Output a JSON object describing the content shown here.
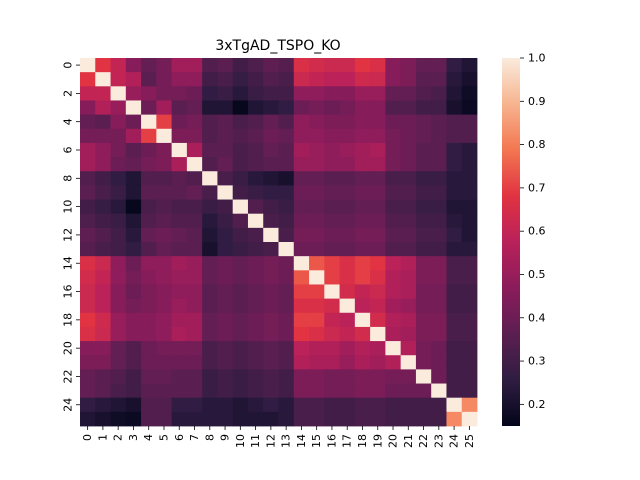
{
  "chart_data": {
    "type": "heatmap",
    "title": "3xTgAD_TSPO_KO",
    "x_tick_labels": [
      "0",
      "1",
      "2",
      "3",
      "4",
      "5",
      "6",
      "7",
      "8",
      "9",
      "10",
      "11",
      "12",
      "13",
      "14",
      "15",
      "16",
      "17",
      "18",
      "19",
      "20",
      "21",
      "22",
      "23",
      "24",
      "25"
    ],
    "y_tick_labels": [
      "0",
      "2",
      "4",
      "6",
      "8",
      "10",
      "12",
      "14",
      "16",
      "18",
      "20",
      "22",
      "24"
    ],
    "colorbar": {
      "ticks": [
        "0.2",
        "0.3",
        "0.4",
        "0.5",
        "0.6",
        "0.7",
        "0.8",
        "0.9",
        "1.0"
      ],
      "range": [
        0.15,
        1.0
      ],
      "colormap": "rocket",
      "colormap_stops": [
        "#03051a",
        "#2f1d42",
        "#5b1e51",
        "#8a1c5b",
        "#b9215a",
        "#e13342",
        "#f37651",
        "#f6b48f",
        "#faebdd"
      ]
    },
    "n_rows": 26,
    "n_cols": 26,
    "matrix": [
      [
        1.0,
        0.68,
        0.6,
        0.46,
        0.38,
        0.42,
        0.52,
        0.52,
        0.34,
        0.36,
        0.3,
        0.33,
        0.37,
        0.35,
        0.66,
        0.64,
        0.62,
        0.62,
        0.68,
        0.66,
        0.46,
        0.44,
        0.38,
        0.38,
        0.26,
        0.22
      ],
      [
        0.68,
        1.0,
        0.6,
        0.56,
        0.36,
        0.42,
        0.48,
        0.48,
        0.3,
        0.32,
        0.27,
        0.3,
        0.34,
        0.32,
        0.62,
        0.6,
        0.58,
        0.58,
        0.63,
        0.62,
        0.46,
        0.44,
        0.36,
        0.36,
        0.24,
        0.2
      ],
      [
        0.6,
        0.6,
        1.0,
        0.5,
        0.46,
        0.42,
        0.42,
        0.4,
        0.26,
        0.28,
        0.24,
        0.28,
        0.3,
        0.3,
        0.48,
        0.48,
        0.46,
        0.46,
        0.5,
        0.5,
        0.38,
        0.38,
        0.34,
        0.32,
        0.22,
        0.18
      ],
      [
        0.46,
        0.56,
        0.5,
        1.0,
        0.4,
        0.52,
        0.36,
        0.38,
        0.22,
        0.22,
        0.16,
        0.22,
        0.24,
        0.26,
        0.4,
        0.42,
        0.4,
        0.42,
        0.46,
        0.46,
        0.34,
        0.34,
        0.3,
        0.3,
        0.2,
        0.17
      ],
      [
        0.38,
        0.36,
        0.46,
        0.4,
        1.0,
        0.7,
        0.4,
        0.42,
        0.34,
        0.36,
        0.32,
        0.34,
        0.38,
        0.34,
        0.48,
        0.46,
        0.44,
        0.44,
        0.46,
        0.46,
        0.4,
        0.4,
        0.38,
        0.36,
        0.34,
        0.34
      ],
      [
        0.42,
        0.42,
        0.42,
        0.52,
        0.7,
        1.0,
        0.44,
        0.44,
        0.34,
        0.36,
        0.34,
        0.36,
        0.4,
        0.38,
        0.48,
        0.48,
        0.46,
        0.46,
        0.48,
        0.48,
        0.42,
        0.4,
        0.38,
        0.36,
        0.34,
        0.34
      ],
      [
        0.52,
        0.48,
        0.42,
        0.36,
        0.4,
        0.44,
        1.0,
        0.54,
        0.36,
        0.36,
        0.32,
        0.34,
        0.38,
        0.36,
        0.52,
        0.5,
        0.48,
        0.5,
        0.52,
        0.54,
        0.42,
        0.4,
        0.36,
        0.36,
        0.26,
        0.24
      ],
      [
        0.52,
        0.48,
        0.4,
        0.38,
        0.42,
        0.44,
        0.54,
        1.0,
        0.34,
        0.38,
        0.32,
        0.34,
        0.36,
        0.36,
        0.5,
        0.5,
        0.48,
        0.48,
        0.52,
        0.52,
        0.42,
        0.4,
        0.36,
        0.36,
        0.26,
        0.24
      ],
      [
        0.34,
        0.3,
        0.26,
        0.22,
        0.34,
        0.34,
        0.36,
        0.34,
        1.0,
        0.32,
        0.28,
        0.24,
        0.22,
        0.2,
        0.38,
        0.38,
        0.36,
        0.36,
        0.38,
        0.38,
        0.32,
        0.32,
        0.28,
        0.28,
        0.24,
        0.24
      ],
      [
        0.36,
        0.32,
        0.28,
        0.22,
        0.36,
        0.36,
        0.36,
        0.38,
        0.32,
        1.0,
        0.3,
        0.28,
        0.26,
        0.26,
        0.4,
        0.4,
        0.38,
        0.38,
        0.4,
        0.4,
        0.34,
        0.34,
        0.3,
        0.3,
        0.24,
        0.24
      ],
      [
        0.3,
        0.27,
        0.24,
        0.16,
        0.32,
        0.34,
        0.32,
        0.32,
        0.28,
        0.3,
        1.0,
        0.34,
        0.3,
        0.28,
        0.38,
        0.38,
        0.36,
        0.36,
        0.38,
        0.38,
        0.32,
        0.32,
        0.28,
        0.28,
        0.22,
        0.22
      ],
      [
        0.33,
        0.3,
        0.28,
        0.22,
        0.34,
        0.36,
        0.34,
        0.34,
        0.24,
        0.28,
        0.34,
        1.0,
        0.32,
        0.3,
        0.4,
        0.4,
        0.38,
        0.38,
        0.4,
        0.4,
        0.34,
        0.34,
        0.3,
        0.3,
        0.24,
        0.22
      ],
      [
        0.37,
        0.34,
        0.3,
        0.24,
        0.38,
        0.4,
        0.38,
        0.36,
        0.22,
        0.26,
        0.3,
        0.32,
        1.0,
        0.32,
        0.42,
        0.42,
        0.4,
        0.4,
        0.42,
        0.42,
        0.36,
        0.36,
        0.32,
        0.32,
        0.26,
        0.22
      ],
      [
        0.35,
        0.32,
        0.3,
        0.26,
        0.34,
        0.38,
        0.36,
        0.36,
        0.2,
        0.26,
        0.28,
        0.3,
        0.32,
        1.0,
        0.4,
        0.4,
        0.38,
        0.38,
        0.4,
        0.4,
        0.34,
        0.34,
        0.3,
        0.3,
        0.24,
        0.24
      ],
      [
        0.66,
        0.62,
        0.48,
        0.4,
        0.48,
        0.48,
        0.52,
        0.5,
        0.38,
        0.4,
        0.38,
        0.4,
        0.42,
        0.4,
        1.0,
        0.74,
        0.7,
        0.66,
        0.7,
        0.68,
        0.58,
        0.56,
        0.44,
        0.44,
        0.32,
        0.32
      ],
      [
        0.64,
        0.6,
        0.48,
        0.42,
        0.46,
        0.48,
        0.5,
        0.5,
        0.38,
        0.4,
        0.38,
        0.4,
        0.42,
        0.4,
        0.74,
        1.0,
        0.7,
        0.66,
        0.7,
        0.66,
        0.56,
        0.54,
        0.44,
        0.44,
        0.32,
        0.32
      ],
      [
        0.62,
        0.58,
        0.46,
        0.4,
        0.44,
        0.46,
        0.48,
        0.48,
        0.36,
        0.38,
        0.36,
        0.38,
        0.4,
        0.38,
        0.7,
        0.7,
        1.0,
        0.64,
        0.6,
        0.62,
        0.56,
        0.54,
        0.42,
        0.42,
        0.3,
        0.3
      ],
      [
        0.62,
        0.58,
        0.46,
        0.42,
        0.44,
        0.46,
        0.5,
        0.48,
        0.36,
        0.38,
        0.36,
        0.38,
        0.4,
        0.38,
        0.66,
        0.66,
        0.64,
        1.0,
        0.58,
        0.6,
        0.52,
        0.5,
        0.42,
        0.42,
        0.3,
        0.3
      ],
      [
        0.68,
        0.63,
        0.5,
        0.46,
        0.46,
        0.48,
        0.52,
        0.52,
        0.38,
        0.4,
        0.38,
        0.4,
        0.42,
        0.4,
        0.7,
        0.7,
        0.6,
        0.58,
        1.0,
        0.64,
        0.56,
        0.54,
        0.44,
        0.44,
        0.32,
        0.32
      ],
      [
        0.66,
        0.62,
        0.5,
        0.46,
        0.46,
        0.48,
        0.54,
        0.52,
        0.38,
        0.4,
        0.38,
        0.4,
        0.42,
        0.4,
        0.68,
        0.66,
        0.62,
        0.6,
        0.64,
        1.0,
        0.54,
        0.52,
        0.44,
        0.44,
        0.32,
        0.32
      ],
      [
        0.46,
        0.46,
        0.38,
        0.34,
        0.4,
        0.42,
        0.42,
        0.42,
        0.32,
        0.34,
        0.32,
        0.34,
        0.36,
        0.34,
        0.58,
        0.56,
        0.56,
        0.52,
        0.56,
        0.54,
        1.0,
        0.56,
        0.42,
        0.4,
        0.3,
        0.3
      ],
      [
        0.44,
        0.44,
        0.38,
        0.34,
        0.4,
        0.4,
        0.4,
        0.4,
        0.32,
        0.34,
        0.32,
        0.34,
        0.36,
        0.34,
        0.56,
        0.54,
        0.54,
        0.5,
        0.54,
        0.52,
        0.56,
        1.0,
        0.42,
        0.4,
        0.3,
        0.3
      ],
      [
        0.38,
        0.36,
        0.34,
        0.3,
        0.38,
        0.38,
        0.36,
        0.36,
        0.28,
        0.3,
        0.28,
        0.3,
        0.32,
        0.3,
        0.44,
        0.44,
        0.42,
        0.42,
        0.44,
        0.44,
        0.42,
        0.42,
        1.0,
        0.4,
        0.3,
        0.3
      ],
      [
        0.38,
        0.36,
        0.32,
        0.3,
        0.36,
        0.36,
        0.36,
        0.36,
        0.28,
        0.3,
        0.28,
        0.3,
        0.32,
        0.3,
        0.44,
        0.44,
        0.42,
        0.42,
        0.44,
        0.44,
        0.4,
        0.4,
        0.4,
        1.0,
        0.3,
        0.3
      ],
      [
        0.26,
        0.24,
        0.22,
        0.2,
        0.34,
        0.34,
        0.26,
        0.26,
        0.24,
        0.24,
        0.22,
        0.24,
        0.26,
        0.24,
        0.32,
        0.32,
        0.3,
        0.3,
        0.32,
        0.32,
        0.3,
        0.3,
        0.3,
        0.3,
        1.0,
        0.82
      ],
      [
        0.22,
        0.2,
        0.18,
        0.17,
        0.34,
        0.34,
        0.24,
        0.24,
        0.24,
        0.24,
        0.22,
        0.22,
        0.22,
        0.24,
        0.32,
        0.32,
        0.3,
        0.3,
        0.32,
        0.32,
        0.3,
        0.3,
        0.3,
        0.3,
        0.82,
        1.0
      ]
    ]
  }
}
